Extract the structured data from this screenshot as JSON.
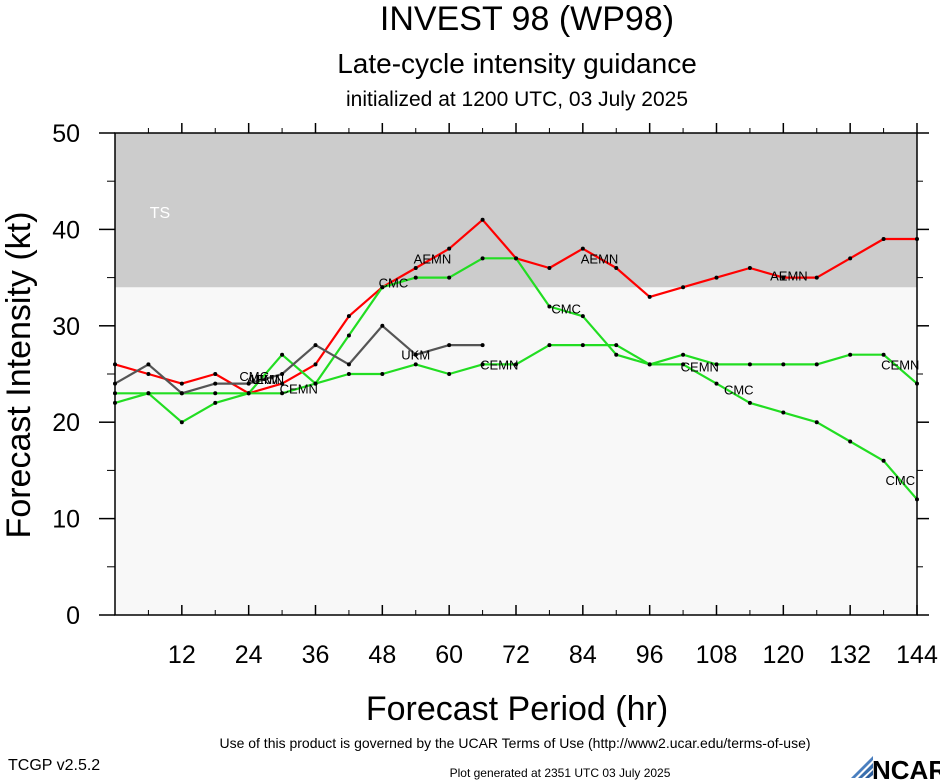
{
  "header": {
    "title": "INVEST 98 (WP98)",
    "subtitle": "Late-cycle intensity guidance",
    "initialized": "initialized at 1200 UTC, 03 July 2025"
  },
  "footer": {
    "terms": "Use of this product is governed by the UCAR Terms of Use (http://www2.ucar.edu/terms-of-use)",
    "version": "TCGP v2.5.2",
    "generated": "Plot generated at 2351 UTC   03 July 2025",
    "logo_text": "NCAR"
  },
  "chart_data": {
    "type": "line",
    "xlabel": "Forecast Period (hr)",
    "ylabel": "Forecast Intensity (kt)",
    "xlim": [
      0,
      144
    ],
    "ylim": [
      0,
      50
    ],
    "xticks": [
      12,
      24,
      36,
      48,
      60,
      72,
      84,
      96,
      108,
      120,
      132,
      144
    ],
    "yticks": [
      0,
      10,
      20,
      30,
      40,
      50
    ],
    "band": {
      "label": "TS",
      "from": 34,
      "to": 50,
      "color": "#cccccc"
    },
    "background_color": "#f8f8f8",
    "series": [
      {
        "name": "AEMN",
        "color": "#ff0000",
        "x": [
          0,
          6,
          12,
          18,
          24,
          30,
          36,
          42,
          48,
          54,
          60,
          66,
          72,
          78,
          84,
          90,
          96,
          102,
          108,
          114,
          120,
          126,
          132,
          138,
          144
        ],
        "y": [
          26,
          25,
          24,
          25,
          23,
          24,
          26,
          31,
          34,
          36,
          38,
          41,
          37,
          36,
          38,
          36,
          33,
          34,
          35,
          36,
          35,
          35,
          37,
          39,
          39
        ],
        "labels": [
          {
            "x": 27,
            "y": 24.5
          },
          {
            "x": 57,
            "y": 37
          },
          {
            "x": 87,
            "y": 37
          },
          {
            "x": 121,
            "y": 35.2
          }
        ]
      },
      {
        "name": "CMC",
        "color": "#22dd22",
        "x": [
          0,
          6,
          12,
          18,
          24,
          30,
          36,
          42,
          48,
          54,
          60,
          66,
          72,
          78,
          84,
          90,
          96,
          102,
          108,
          114,
          120,
          126,
          132,
          138,
          144
        ],
        "y": [
          22,
          23,
          23,
          23,
          23,
          27,
          24,
          29,
          34,
          35,
          35,
          37,
          37,
          32,
          31,
          27,
          26,
          26,
          24,
          22,
          21,
          20,
          18,
          16,
          12
        ],
        "labels": [
          {
            "x": 25,
            "y": 24.8
          },
          {
            "x": 50,
            "y": 34.5
          },
          {
            "x": 81,
            "y": 31.8
          },
          {
            "x": 112,
            "y": 23.4
          },
          {
            "x": 141,
            "y": 14
          }
        ]
      },
      {
        "name": "CEMN",
        "color": "#22dd22",
        "x": [
          0,
          6,
          12,
          18,
          24,
          30,
          36,
          42,
          48,
          54,
          60,
          66,
          72,
          78,
          84,
          90,
          96,
          102,
          108,
          114,
          120,
          126,
          132,
          138,
          144
        ],
        "y": [
          23,
          23,
          20,
          22,
          23,
          23,
          24,
          25,
          25,
          26,
          25,
          26,
          26,
          28,
          28,
          28,
          26,
          27,
          26,
          26,
          26,
          26,
          27,
          27,
          24
        ],
        "labels": [
          {
            "x": 33,
            "y": 23.5
          },
          {
            "x": 69,
            "y": 26
          },
          {
            "x": 105,
            "y": 25.8
          },
          {
            "x": 141,
            "y": 26
          }
        ]
      },
      {
        "name": "UKM",
        "color": "#555555",
        "x": [
          0,
          6,
          12,
          18,
          24,
          30,
          36,
          42,
          48,
          54,
          60,
          66
        ],
        "y": [
          24,
          26,
          23,
          24,
          24,
          25,
          28,
          26,
          30,
          27,
          28,
          28
        ],
        "labels": [
          {
            "x": 27,
            "y": 24.5
          },
          {
            "x": 54,
            "y": 27
          }
        ]
      }
    ]
  }
}
